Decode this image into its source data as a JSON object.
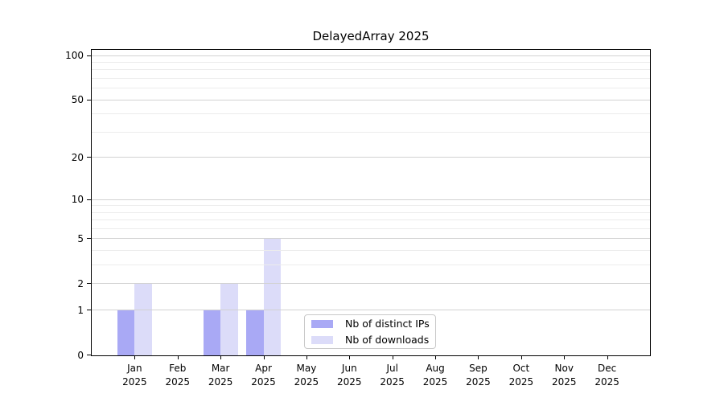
{
  "title": "DelayedArray 2025",
  "chart_data": {
    "type": "bar",
    "title": "DelayedArray 2025",
    "categories": [
      "Jan",
      "Feb",
      "Mar",
      "Apr",
      "May",
      "Jun",
      "Jul",
      "Aug",
      "Sep",
      "Oct",
      "Nov",
      "Dec"
    ],
    "x_year": "2025",
    "series": [
      {
        "name": "Nb of distinct IPs",
        "color": "#a9a9f5",
        "values": [
          1,
          0,
          1,
          1,
          0,
          0,
          0,
          0,
          0,
          0,
          0,
          0
        ]
      },
      {
        "name": "Nb of downloads",
        "color": "#dcdcf9",
        "values": [
          2,
          0,
          2,
          5,
          0,
          0,
          0,
          0,
          0,
          0,
          0,
          0
        ]
      }
    ],
    "y_scale": "log1p",
    "ylim": [
      0,
      110
    ],
    "y_major_ticks": [
      0,
      1,
      2,
      5,
      10,
      20,
      50,
      100
    ],
    "y_minor_gridlines": [
      3,
      4,
      6,
      7,
      8,
      9,
      30,
      40,
      60,
      70,
      80,
      90
    ],
    "grid": true,
    "legend_position": "bottom-center"
  }
}
